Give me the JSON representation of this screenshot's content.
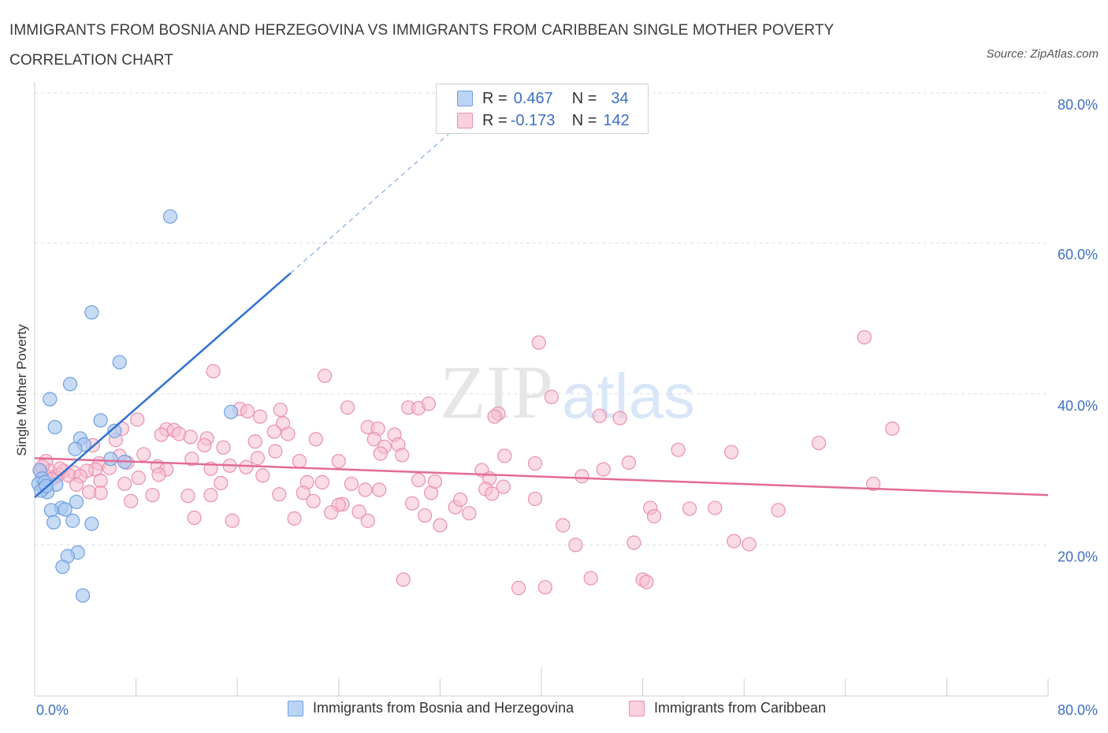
{
  "title": "IMMIGRANTS FROM BOSNIA AND HERZEGOVINA VS IMMIGRANTS FROM CARIBBEAN SINGLE MOTHER POVERTY CORRELATION CHART",
  "source": "Source: ZipAtlas.com",
  "watermark": {
    "zip": "ZIP",
    "atlas": "atlas"
  },
  "legend": {
    "rows": [
      {
        "r_label": "R =",
        "r_value": "0.467",
        "n_label": "N =",
        "n_value": "34"
      },
      {
        "r_label": "R =",
        "r_value": "-0.173",
        "n_label": "N =",
        "n_value": "142"
      }
    ]
  },
  "bottom_legend": {
    "bosnia": "Immigrants from Bosnia and Herzegovina",
    "caribbean": "Immigrants from Caribbean"
  },
  "colors": {
    "bosnia_fill": "#a9c8f0",
    "bosnia_stroke": "#6f9fe0",
    "bosnia_line": "#2f72d0",
    "caribbean_fill": "#f6bfd1",
    "caribbean_stroke": "#ea8fae",
    "caribbean_line": "#e36b96",
    "axis_text": "#3d6fc4",
    "grid": "#dddddd"
  },
  "chart_data": {
    "type": "scatter",
    "title": "IMMIGRANTS FROM BOSNIA AND HERZEGOVINA VS IMMIGRANTS FROM CARIBBEAN SINGLE MOTHER POVERTY CORRELATION CHART",
    "xlabel": "",
    "ylabel": "Single Mother Poverty",
    "xlim": [
      0,
      80
    ],
    "ylim": [
      0,
      80
    ],
    "x_tick_labels": [
      "0.0%",
      "80.0%"
    ],
    "y_tick_labels": [
      "20.0%",
      "40.0%",
      "60.0%",
      "80.0%"
    ],
    "y_ticks": [
      20,
      40,
      60,
      80
    ],
    "series": [
      {
        "name": "Immigrants from Bosnia and Herzegovina",
        "r": 0.467,
        "n": 34,
        "trend": {
          "x0": 0,
          "y0": 26.3,
          "x1": 20.2,
          "y1": 56.0,
          "dash_x1": 33.0,
          "dash_y1": 74.9
        },
        "points": [
          [
            10.7,
            63.5
          ],
          [
            4.5,
            50.8
          ],
          [
            6.7,
            44.2
          ],
          [
            2.8,
            41.3
          ],
          [
            1.2,
            39.3
          ],
          [
            5.2,
            36.5
          ],
          [
            1.6,
            35.6
          ],
          [
            6.3,
            35.1
          ],
          [
            3.6,
            34.1
          ],
          [
            3.9,
            33.3
          ],
          [
            3.2,
            32.7
          ],
          [
            6.0,
            31.4
          ],
          [
            7.1,
            31.0
          ],
          [
            0.4,
            29.9
          ],
          [
            0.6,
            28.8
          ],
          [
            0.3,
            28.1
          ],
          [
            0.8,
            28.3
          ],
          [
            1.7,
            28.0
          ],
          [
            0.7,
            27.5
          ],
          [
            1.0,
            27.0
          ],
          [
            0.5,
            27.2
          ],
          [
            15.5,
            37.6
          ],
          [
            3.3,
            25.7
          ],
          [
            2.1,
            24.9
          ],
          [
            2.4,
            24.7
          ],
          [
            1.3,
            24.6
          ],
          [
            1.5,
            23.0
          ],
          [
            3.0,
            23.2
          ],
          [
            4.5,
            22.8
          ],
          [
            3.4,
            19.0
          ],
          [
            2.6,
            18.5
          ],
          [
            2.2,
            17.1
          ],
          [
            3.8,
            13.3
          ],
          [
            0.9,
            27.8
          ]
        ]
      },
      {
        "name": "Immigrants from Caribbean",
        "r": -0.173,
        "n": 142,
        "trend": {
          "x0": 0,
          "y0": 31.5,
          "x1": 80,
          "y1": 26.6
        },
        "points": [
          [
            39.8,
            46.8
          ],
          [
            65.5,
            47.5
          ],
          [
            14.1,
            43.0
          ],
          [
            22.9,
            42.4
          ],
          [
            24.7,
            38.2
          ],
          [
            29.5,
            38.2
          ],
          [
            30.3,
            38.1
          ],
          [
            31.1,
            38.7
          ],
          [
            40.8,
            39.6
          ],
          [
            16.2,
            38.0
          ],
          [
            19.4,
            37.9
          ],
          [
            16.8,
            37.7
          ],
          [
            36.6,
            37.4
          ],
          [
            36.3,
            37.0
          ],
          [
            46.2,
            36.8
          ],
          [
            17.8,
            37.0
          ],
          [
            8.1,
            36.6
          ],
          [
            19.6,
            36.1
          ],
          [
            26.3,
            35.6
          ],
          [
            6.9,
            35.4
          ],
          [
            10.4,
            35.3
          ],
          [
            11.0,
            35.2
          ],
          [
            18.9,
            35.0
          ],
          [
            27.1,
            35.4
          ],
          [
            67.7,
            35.4
          ],
          [
            10.0,
            34.6
          ],
          [
            11.4,
            34.7
          ],
          [
            12.3,
            34.3
          ],
          [
            13.6,
            34.1
          ],
          [
            22.2,
            34.0
          ],
          [
            28.4,
            34.6
          ],
          [
            26.8,
            34.0
          ],
          [
            6.4,
            33.9
          ],
          [
            17.4,
            33.7
          ],
          [
            13.4,
            33.2
          ],
          [
            28.7,
            33.3
          ],
          [
            61.9,
            33.5
          ],
          [
            4.6,
            33.2
          ],
          [
            14.9,
            32.9
          ],
          [
            27.6,
            33.0
          ],
          [
            19.0,
            32.4
          ],
          [
            50.8,
            32.6
          ],
          [
            55.0,
            32.3
          ],
          [
            27.3,
            32.1
          ],
          [
            8.6,
            32.0
          ],
          [
            29.0,
            31.9
          ],
          [
            37.1,
            31.8
          ],
          [
            17.6,
            31.5
          ],
          [
            12.4,
            31.4
          ],
          [
            20.9,
            31.1
          ],
          [
            24.0,
            31.1
          ],
          [
            0.9,
            31.1
          ],
          [
            39.5,
            30.8
          ],
          [
            46.9,
            30.9
          ],
          [
            7.3,
            30.9
          ],
          [
            5.1,
            30.8
          ],
          [
            9.7,
            30.4
          ],
          [
            15.4,
            30.5
          ],
          [
            5.9,
            30.2
          ],
          [
            4.8,
            30.0
          ],
          [
            10.4,
            30.0
          ],
          [
            13.9,
            30.1
          ],
          [
            0.5,
            29.7
          ],
          [
            1.2,
            29.8
          ],
          [
            2.3,
            29.8
          ],
          [
            3.1,
            29.6
          ],
          [
            4.1,
            29.8
          ],
          [
            35.3,
            29.9
          ],
          [
            44.9,
            30.0
          ],
          [
            1.9,
            29.3
          ],
          [
            2.7,
            29.2
          ],
          [
            1.6,
            29.0
          ],
          [
            0.8,
            29.2
          ],
          [
            3.6,
            29.1
          ],
          [
            18.0,
            29.2
          ],
          [
            43.2,
            29.1
          ],
          [
            1.3,
            28.7
          ],
          [
            5.2,
            28.5
          ],
          [
            7.1,
            28.1
          ],
          [
            3.3,
            28.0
          ],
          [
            14.7,
            28.2
          ],
          [
            21.5,
            28.3
          ],
          [
            22.7,
            28.3
          ],
          [
            30.3,
            28.6
          ],
          [
            35.9,
            28.8
          ],
          [
            37.0,
            27.7
          ],
          [
            35.6,
            27.4
          ],
          [
            66.2,
            28.1
          ],
          [
            26.1,
            27.3
          ],
          [
            27.2,
            27.3
          ],
          [
            21.2,
            26.9
          ],
          [
            31.3,
            26.9
          ],
          [
            19.3,
            26.7
          ],
          [
            36.1,
            26.8
          ],
          [
            5.2,
            26.9
          ],
          [
            9.3,
            26.6
          ],
          [
            12.1,
            26.5
          ],
          [
            13.9,
            26.6
          ],
          [
            39.5,
            26.1
          ],
          [
            7.6,
            25.8
          ],
          [
            22.0,
            25.8
          ],
          [
            24.3,
            25.4
          ],
          [
            24.0,
            25.3
          ],
          [
            29.8,
            25.5
          ],
          [
            33.2,
            25.0
          ],
          [
            48.6,
            24.9
          ],
          [
            51.7,
            24.8
          ],
          [
            53.7,
            24.9
          ],
          [
            58.7,
            24.6
          ],
          [
            23.4,
            24.3
          ],
          [
            25.6,
            24.4
          ],
          [
            34.3,
            24.2
          ],
          [
            30.8,
            23.9
          ],
          [
            48.9,
            23.8
          ],
          [
            12.6,
            23.6
          ],
          [
            20.5,
            23.5
          ],
          [
            15.6,
            23.2
          ],
          [
            26.3,
            23.2
          ],
          [
            32.0,
            22.6
          ],
          [
            41.7,
            22.6
          ],
          [
            55.2,
            20.5
          ],
          [
            56.4,
            20.1
          ],
          [
            42.7,
            20.0
          ],
          [
            47.3,
            20.3
          ],
          [
            29.1,
            15.4
          ],
          [
            43.9,
            15.6
          ],
          [
            48.0,
            15.4
          ],
          [
            48.3,
            15.1
          ],
          [
            38.2,
            14.3
          ],
          [
            40.3,
            14.4
          ],
          [
            9.8,
            29.3
          ],
          [
            16.7,
            30.3
          ],
          [
            25.0,
            28.1
          ],
          [
            33.6,
            26.0
          ],
          [
            6.7,
            31.8
          ],
          [
            31.6,
            28.4
          ],
          [
            20.0,
            34.7
          ],
          [
            8.2,
            28.9
          ],
          [
            0.6,
            30.4
          ],
          [
            2.0,
            30.1
          ],
          [
            44.6,
            37.1
          ],
          [
            4.3,
            27.0
          ]
        ]
      }
    ]
  }
}
